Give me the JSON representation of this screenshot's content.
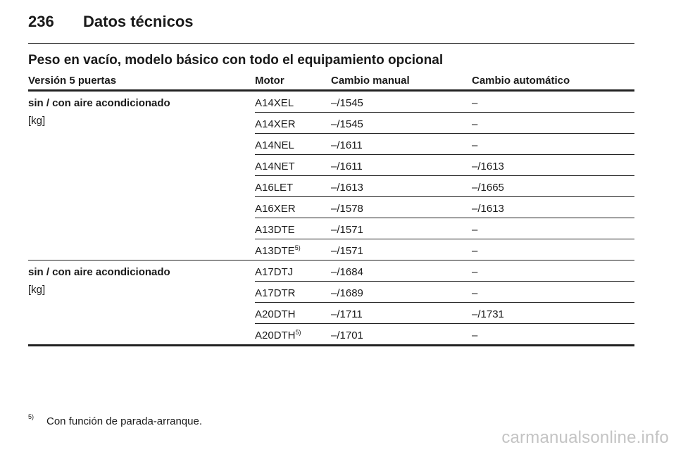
{
  "header": {
    "page_number": "236",
    "title": "Datos técnicos"
  },
  "section_title": "Peso en vacío, modelo básico con todo el equipamiento opcional",
  "table": {
    "columns": [
      "Versión 5 puertas",
      "Motor",
      "Cambio manual",
      "Cambio automático"
    ],
    "groups": [
      {
        "label": "sin / con aire acondicionado",
        "unit": "[kg]",
        "rows": [
          {
            "motor": "A14XEL",
            "sup": "",
            "manual": "–/1545",
            "auto": "–"
          },
          {
            "motor": "A14XER",
            "sup": "",
            "manual": "–/1545",
            "auto": "–"
          },
          {
            "motor": "A14NEL",
            "sup": "",
            "manual": "–/1611",
            "auto": "–"
          },
          {
            "motor": "A14NET",
            "sup": "",
            "manual": "–/1611",
            "auto": "–/1613"
          },
          {
            "motor": "A16LET",
            "sup": "",
            "manual": "–/1613",
            "auto": "–/1665"
          },
          {
            "motor": "A16XER",
            "sup": "",
            "manual": "–/1578",
            "auto": "–/1613"
          },
          {
            "motor": "A13DTE",
            "sup": "",
            "manual": "–/1571",
            "auto": "–"
          },
          {
            "motor": "A13DTE",
            "sup": "5)",
            "manual": "–/1571",
            "auto": "–"
          }
        ]
      },
      {
        "label": "sin / con aire acondicionado",
        "unit": "[kg]",
        "rows": [
          {
            "motor": "A17DTJ",
            "sup": "",
            "manual": "–/1684",
            "auto": "–"
          },
          {
            "motor": "A17DTR",
            "sup": "",
            "manual": "–/1689",
            "auto": "–"
          },
          {
            "motor": "A20DTH",
            "sup": "",
            "manual": "–/1711",
            "auto": "–/1731"
          },
          {
            "motor": "A20DTH",
            "sup": "5)",
            "manual": "–/1701",
            "auto": "–"
          }
        ]
      }
    ]
  },
  "footnote": {
    "mark": "5)",
    "text": "Con función de parada-arranque."
  },
  "watermark": "carmanualsonline.info"
}
